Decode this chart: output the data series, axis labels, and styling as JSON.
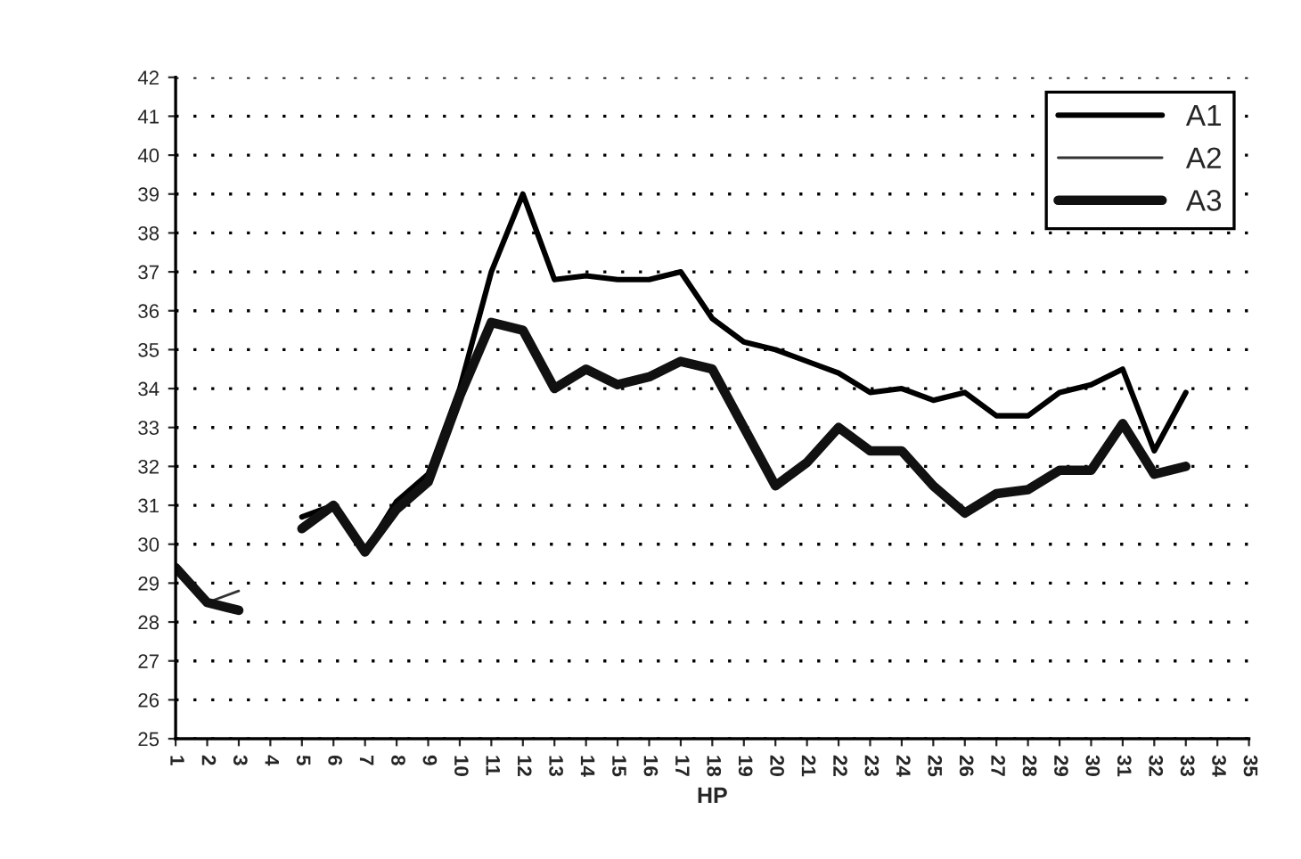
{
  "chart_data": {
    "type": "line",
    "xlabel": "HP",
    "categories": [
      "1",
      "2",
      "3",
      "4",
      "5",
      "6",
      "7",
      "8",
      "9",
      "10",
      "11",
      "12",
      "13",
      "14",
      "15",
      "16",
      "17",
      "18",
      "19",
      "20",
      "21",
      "22",
      "23",
      "24",
      "25",
      "26",
      "27",
      "28",
      "29",
      "30",
      "31",
      "32",
      "33",
      "34",
      "35"
    ],
    "series": [
      {
        "name": "A1",
        "color": "#000000",
        "values": [
          29.4,
          28.5,
          28.3,
          null,
          30.7,
          31.0,
          29.8,
          31.1,
          31.8,
          34.0,
          37.0,
          39.0,
          36.8,
          36.9,
          36.8,
          36.8,
          37.0,
          35.8,
          35.2,
          35.0,
          34.7,
          34.4,
          33.9,
          34.0,
          33.7,
          33.9,
          33.3,
          33.3,
          33.9,
          34.1,
          34.5,
          32.4,
          33.9,
          null,
          null
        ]
      },
      {
        "name": "A2",
        "color": "#333333",
        "values": [
          null,
          28.5,
          28.8,
          null,
          null,
          null,
          null,
          null,
          null,
          null,
          null,
          null,
          null,
          null,
          null,
          null,
          null,
          null,
          null,
          null,
          null,
          null,
          null,
          null,
          null,
          null,
          null,
          null,
          null,
          null,
          null,
          null,
          null,
          null,
          null
        ]
      },
      {
        "name": "A3",
        "color": "#111111",
        "values": [
          29.4,
          28.5,
          28.3,
          null,
          30.4,
          31.0,
          29.8,
          30.9,
          31.6,
          33.8,
          35.7,
          35.5,
          34.0,
          34.5,
          34.1,
          34.3,
          34.7,
          34.5,
          33.0,
          31.5,
          32.1,
          33.0,
          32.4,
          32.4,
          31.5,
          30.8,
          31.3,
          31.4,
          31.9,
          31.9,
          33.1,
          31.8,
          32.0,
          null,
          null
        ]
      }
    ],
    "ylim": [
      25,
      42
    ],
    "yticks": [
      25,
      26,
      27,
      28,
      29,
      30,
      31,
      32,
      33,
      34,
      35,
      36,
      37,
      38,
      39,
      40,
      41,
      42
    ],
    "grid": "y",
    "legend": "top right"
  }
}
